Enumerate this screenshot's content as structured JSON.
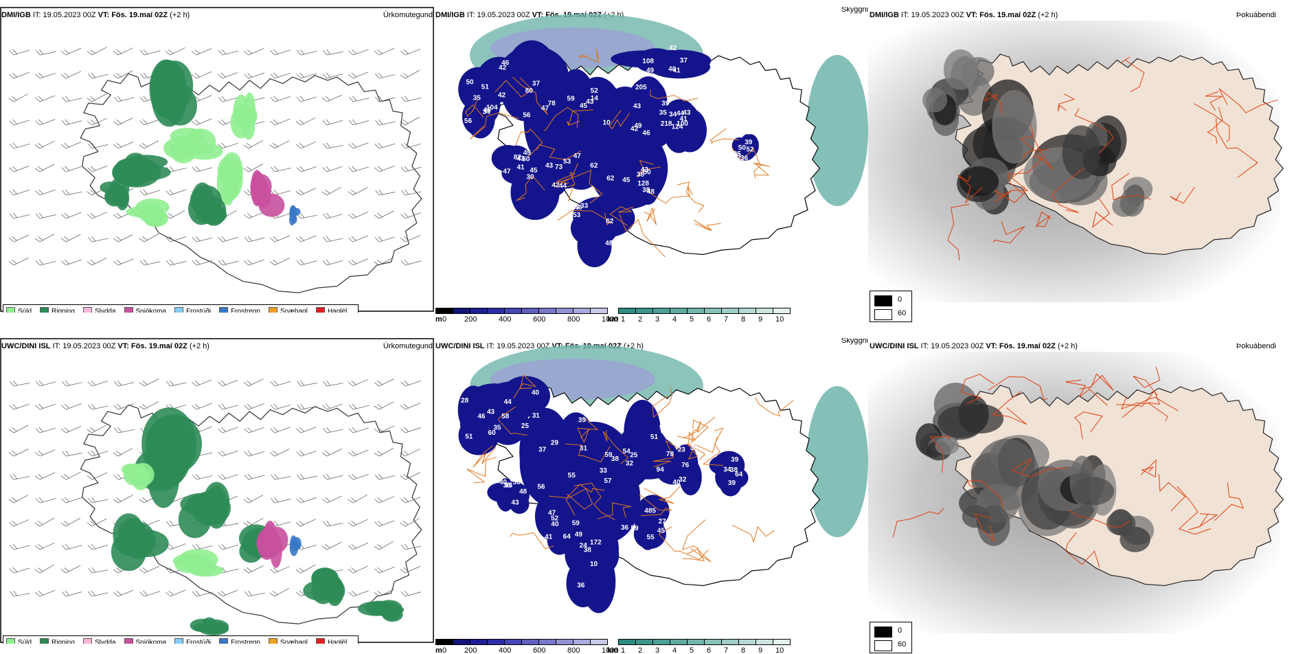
{
  "rows": [
    {
      "prec": {
        "model": "DMI/IGB",
        "it": "IT: 19.05.2023 00Z",
        "vt": "VT: Fös. 19.maí 02Z",
        "offset": "(+2 h)",
        "label": "Úrkomutegund"
      },
      "cloud": {
        "model": "DMI/IGB",
        "it": "IT: 19.05.2023 00Z",
        "vt": "VT: Fös. 19.maí 02Z",
        "offset": "(+2 h)",
        "label": "Skyggni",
        "labels": [
          "46",
          "45",
          "45",
          "45",
          "45",
          "42",
          "48",
          "100",
          "50",
          "51",
          "91",
          "42",
          "42",
          "47",
          "62",
          "42",
          "60",
          "205",
          "39",
          "44",
          "43",
          "56",
          "50",
          "40",
          "42",
          "52",
          "43",
          "43",
          "41",
          "46",
          "46",
          "41",
          "48",
          "46",
          "35",
          "49",
          "56",
          "47",
          "62",
          "30",
          "43",
          "35",
          "33",
          "34",
          "38",
          "34",
          "39",
          "37",
          "37",
          "59",
          "49",
          "44",
          "47",
          "39",
          "62",
          "43",
          "38",
          "35",
          "36",
          "41",
          "104",
          "14",
          "43",
          "53",
          "82",
          "218",
          "153",
          "124",
          "128",
          "50",
          "52",
          "108",
          "80",
          "78",
          "10",
          "73"
        ]
      },
      "fog": {
        "model": "DMI/IGB",
        "it": "IT: 19.05.2023 00Z",
        "vt": "VT: Fös. 19.maí 02Z",
        "offset": "(+2 h)",
        "label": "Þokuábendi"
      }
    },
    {
      "prec": {
        "model": "UWC/DINI ISL",
        "it": "IT: 19.05.2023 00Z",
        "vt": "VT: Fös. 19.maí 02Z",
        "offset": "(+2 h)",
        "label": "Úrkomutegund"
      },
      "cloud": {
        "model": "UWC/DINI ISL",
        "it": "IT: 19.05.2023 00Z",
        "vt": "VT: Fös. 19.maí 02Z",
        "offset": "(+2 h)",
        "label": "Skyggni",
        "labels": [
          "58",
          "56",
          "59",
          "64",
          "40",
          "94",
          "172",
          "76",
          "59",
          "51",
          "38",
          "35",
          "37",
          "38",
          "59",
          "50",
          "54",
          "38",
          "78",
          "45",
          "43",
          "39",
          "40",
          "39",
          "36",
          "41",
          "43",
          "51",
          "49",
          "32",
          "27",
          "28",
          "64",
          "25",
          "29",
          "32",
          "52",
          "38",
          "54",
          "36",
          "40",
          "55",
          "46",
          "39",
          "31",
          "31",
          "33",
          "40",
          "33",
          "25",
          "24",
          "23",
          "485",
          "60",
          "34",
          "44",
          "55",
          "57",
          "47",
          "48",
          "54",
          "10",
          "36"
        ]
      },
      "fog": {
        "model": "UWC/DINI ISL",
        "it": "IT: 19.05.2023 00Z",
        "vt": "VT: Fös. 19.maí 02Z",
        "offset": "(+2 h)",
        "label": "Þokuábendi"
      }
    }
  ],
  "prec_legend": [
    {
      "label": "Súld",
      "color": "#90ee90"
    },
    {
      "label": "Rigning",
      "color": "#2e8b57"
    },
    {
      "label": "Slydda",
      "color": "#ffb6d9"
    },
    {
      "label": "Snjókoma",
      "color": "#c8509e"
    },
    {
      "label": "Frostúði",
      "color": "#87cefa"
    },
    {
      "label": "Frostregn",
      "color": "#3a78c8"
    },
    {
      "label": "Snæhagl",
      "color": "#f0a020"
    },
    {
      "label": "Haglél",
      "color": "#e02020"
    }
  ],
  "cloud_scale": {
    "unit": "m",
    "ticks": [
      "0",
      "200",
      "400",
      "600",
      "800",
      "1000"
    ],
    "colors": [
      "#000000",
      "#14147a",
      "#1e1e96",
      "#2d2da8",
      "#4646b4",
      "#5f5fbe",
      "#7878c8",
      "#9191d2",
      "#aaaadc",
      "#c8c8e8"
    ]
  },
  "vis_scale": {
    "unit": "km",
    "ticks": [
      "1",
      "2",
      "3",
      "4",
      "5",
      "6",
      "7",
      "8",
      "9",
      "10"
    ],
    "colors": [
      "#2e8b80",
      "#3d958a",
      "#4ea096",
      "#5faaa0",
      "#72b5ab",
      "#87c1b8",
      "#9dcdc5",
      "#b4d9d2",
      "#cce5e0",
      "#e4f2ef"
    ]
  },
  "fog_scale": {
    "ticks": [
      "0",
      "60"
    ],
    "colors": [
      "#000000",
      "#ffffff"
    ]
  }
}
